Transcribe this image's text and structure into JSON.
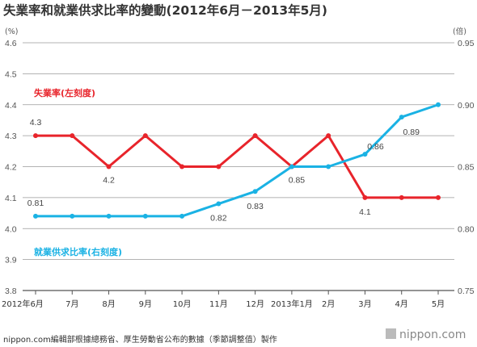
{
  "title": "失業率和就業供求比率的變動(2012年6月－2013年5月)",
  "footer": {
    "source": "nippon.com編輯部根據總務省、厚生勞動省公布的數據（季節調整值）製作",
    "brand": "nippon.com"
  },
  "chart_data": {
    "type": "line",
    "categories": [
      "2012年6月",
      "7月",
      "8月",
      "9月",
      "10月",
      "11月",
      "12月",
      "2013年1月",
      "2月",
      "3月",
      "4月",
      "5月"
    ],
    "left_axis": {
      "unit": "(%)",
      "ylim": [
        3.8,
        4.6
      ],
      "ticks": [
        "3.8",
        "3.9",
        "4.0",
        "4.1",
        "4.2",
        "4.3",
        "4.4",
        "4.5",
        "4.6"
      ]
    },
    "right_axis": {
      "unit": "(倍)",
      "ylim": [
        0.75,
        0.95
      ],
      "ticks": [
        "0.75",
        "0.80",
        "0.85",
        "0.90",
        "0.95"
      ]
    },
    "grid": true,
    "series": [
      {
        "name": "失業率(左刻度)",
        "axis": "left",
        "color": "#e8242b",
        "values": [
          4.3,
          4.3,
          4.2,
          4.3,
          4.2,
          4.2,
          4.3,
          4.2,
          4.3,
          4.1,
          4.1,
          4.1
        ],
        "data_labels": [
          "4.3",
          "",
          "4.2",
          "",
          "",
          "",
          "",
          "",
          "",
          "4.1",
          "",
          ""
        ]
      },
      {
        "name": "就業供求比率(右刻度)",
        "axis": "right",
        "color": "#1ab2e4",
        "values": [
          0.81,
          0.81,
          0.81,
          0.81,
          0.81,
          0.82,
          0.83,
          0.85,
          0.85,
          0.86,
          0.89,
          0.9
        ],
        "data_labels": [
          "0.81",
          "",
          "",
          "",
          "",
          "0.82",
          "0.83",
          "0.85",
          "",
          "0.86",
          "0.89",
          ""
        ]
      }
    ]
  }
}
